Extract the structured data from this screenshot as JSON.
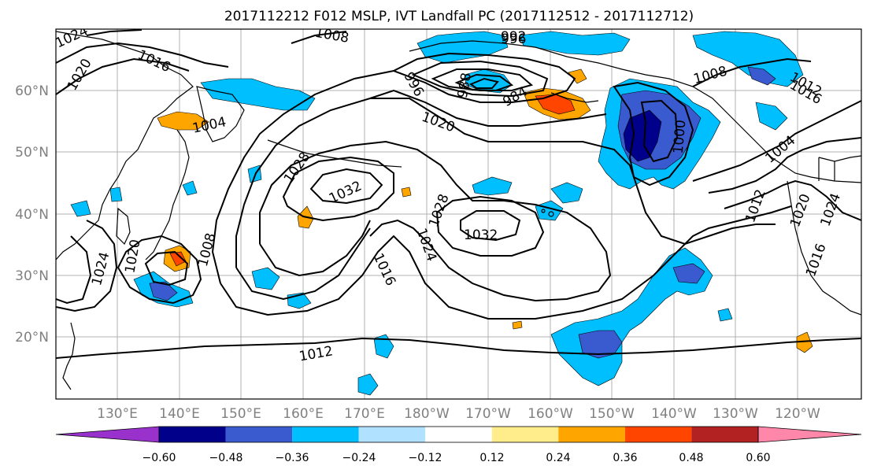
{
  "title": "2017112212 F012 MSLP, IVT Landfall PC (2017112512 - 2017112712)",
  "lat_labels": [
    "60°N",
    "50°N",
    "40°N",
    "30°N",
    "20°N"
  ],
  "lon_labels": [
    "130°E",
    "140°E",
    "150°E",
    "160°E",
    "170°E",
    "180°W",
    "170°W",
    "160°W",
    "150°W",
    "140°W",
    "130°W",
    "120°W"
  ],
  "colorbar": {
    "colors": [
      "#9932cc",
      "#00008b",
      "#3a5bd0",
      "#00bfff",
      "#b0e2ff",
      "#ffffff",
      "#ffec8b",
      "#ffa500",
      "#ff4500",
      "#b22222",
      "#ff88aa"
    ],
    "tick_labels": [
      "−0.60",
      "−0.48",
      "−0.36",
      "−0.24",
      "−0.12",
      "0.12",
      "0.24",
      "0.36",
      "0.48",
      "0.60"
    ]
  },
  "isobar_labels": [
    {
      "text": "1024",
      "id": "iso-1024-nw"
    },
    {
      "text": "1020",
      "id": "iso-1020-nw"
    },
    {
      "text": "1016",
      "id": "iso-1016-nw"
    },
    {
      "text": "1004",
      "id": "iso-1004"
    },
    {
      "text": "1008",
      "id": "iso-1008-top"
    },
    {
      "text": "996",
      "id": "iso-996-a"
    },
    {
      "text": "992",
      "id": "iso-992"
    },
    {
      "text": "996",
      "id": "iso-996-b"
    },
    {
      "text": "988",
      "id": "iso-988"
    },
    {
      "text": "984",
      "id": "iso-984"
    },
    {
      "text": "1020",
      "id": "iso-1020-mid"
    },
    {
      "text": "1028",
      "id": "iso-1028-w"
    },
    {
      "text": "1032",
      "id": "iso-1032-w"
    },
    {
      "text": "1028",
      "id": "iso-1028-e"
    },
    {
      "text": "1032",
      "id": "iso-1032-e"
    },
    {
      "text": "1024",
      "id": "iso-1024-c"
    },
    {
      "text": "1016",
      "id": "iso-1016-c"
    },
    {
      "text": "1012",
      "id": "iso-1012-s"
    },
    {
      "text": "1008",
      "id": "iso-1008-jp"
    },
    {
      "text": "1020",
      "id": "iso-1020-jp"
    },
    {
      "text": "1024",
      "id": "iso-1024-jp"
    },
    {
      "text": "1000",
      "id": "iso-1000"
    },
    {
      "text": "1008",
      "id": "iso-1008-ak"
    },
    {
      "text": "1004",
      "id": "iso-1004-e"
    },
    {
      "text": "1012",
      "id": "iso-1012-e"
    },
    {
      "text": "1020",
      "id": "iso-1020-e"
    },
    {
      "text": "1024",
      "id": "iso-1024-e"
    },
    {
      "text": "1016",
      "id": "iso-1016-e"
    },
    {
      "text": "1012",
      "id": "iso-1012-ne"
    },
    {
      "text": "1016",
      "id": "iso-1016-ne"
    }
  ]
}
